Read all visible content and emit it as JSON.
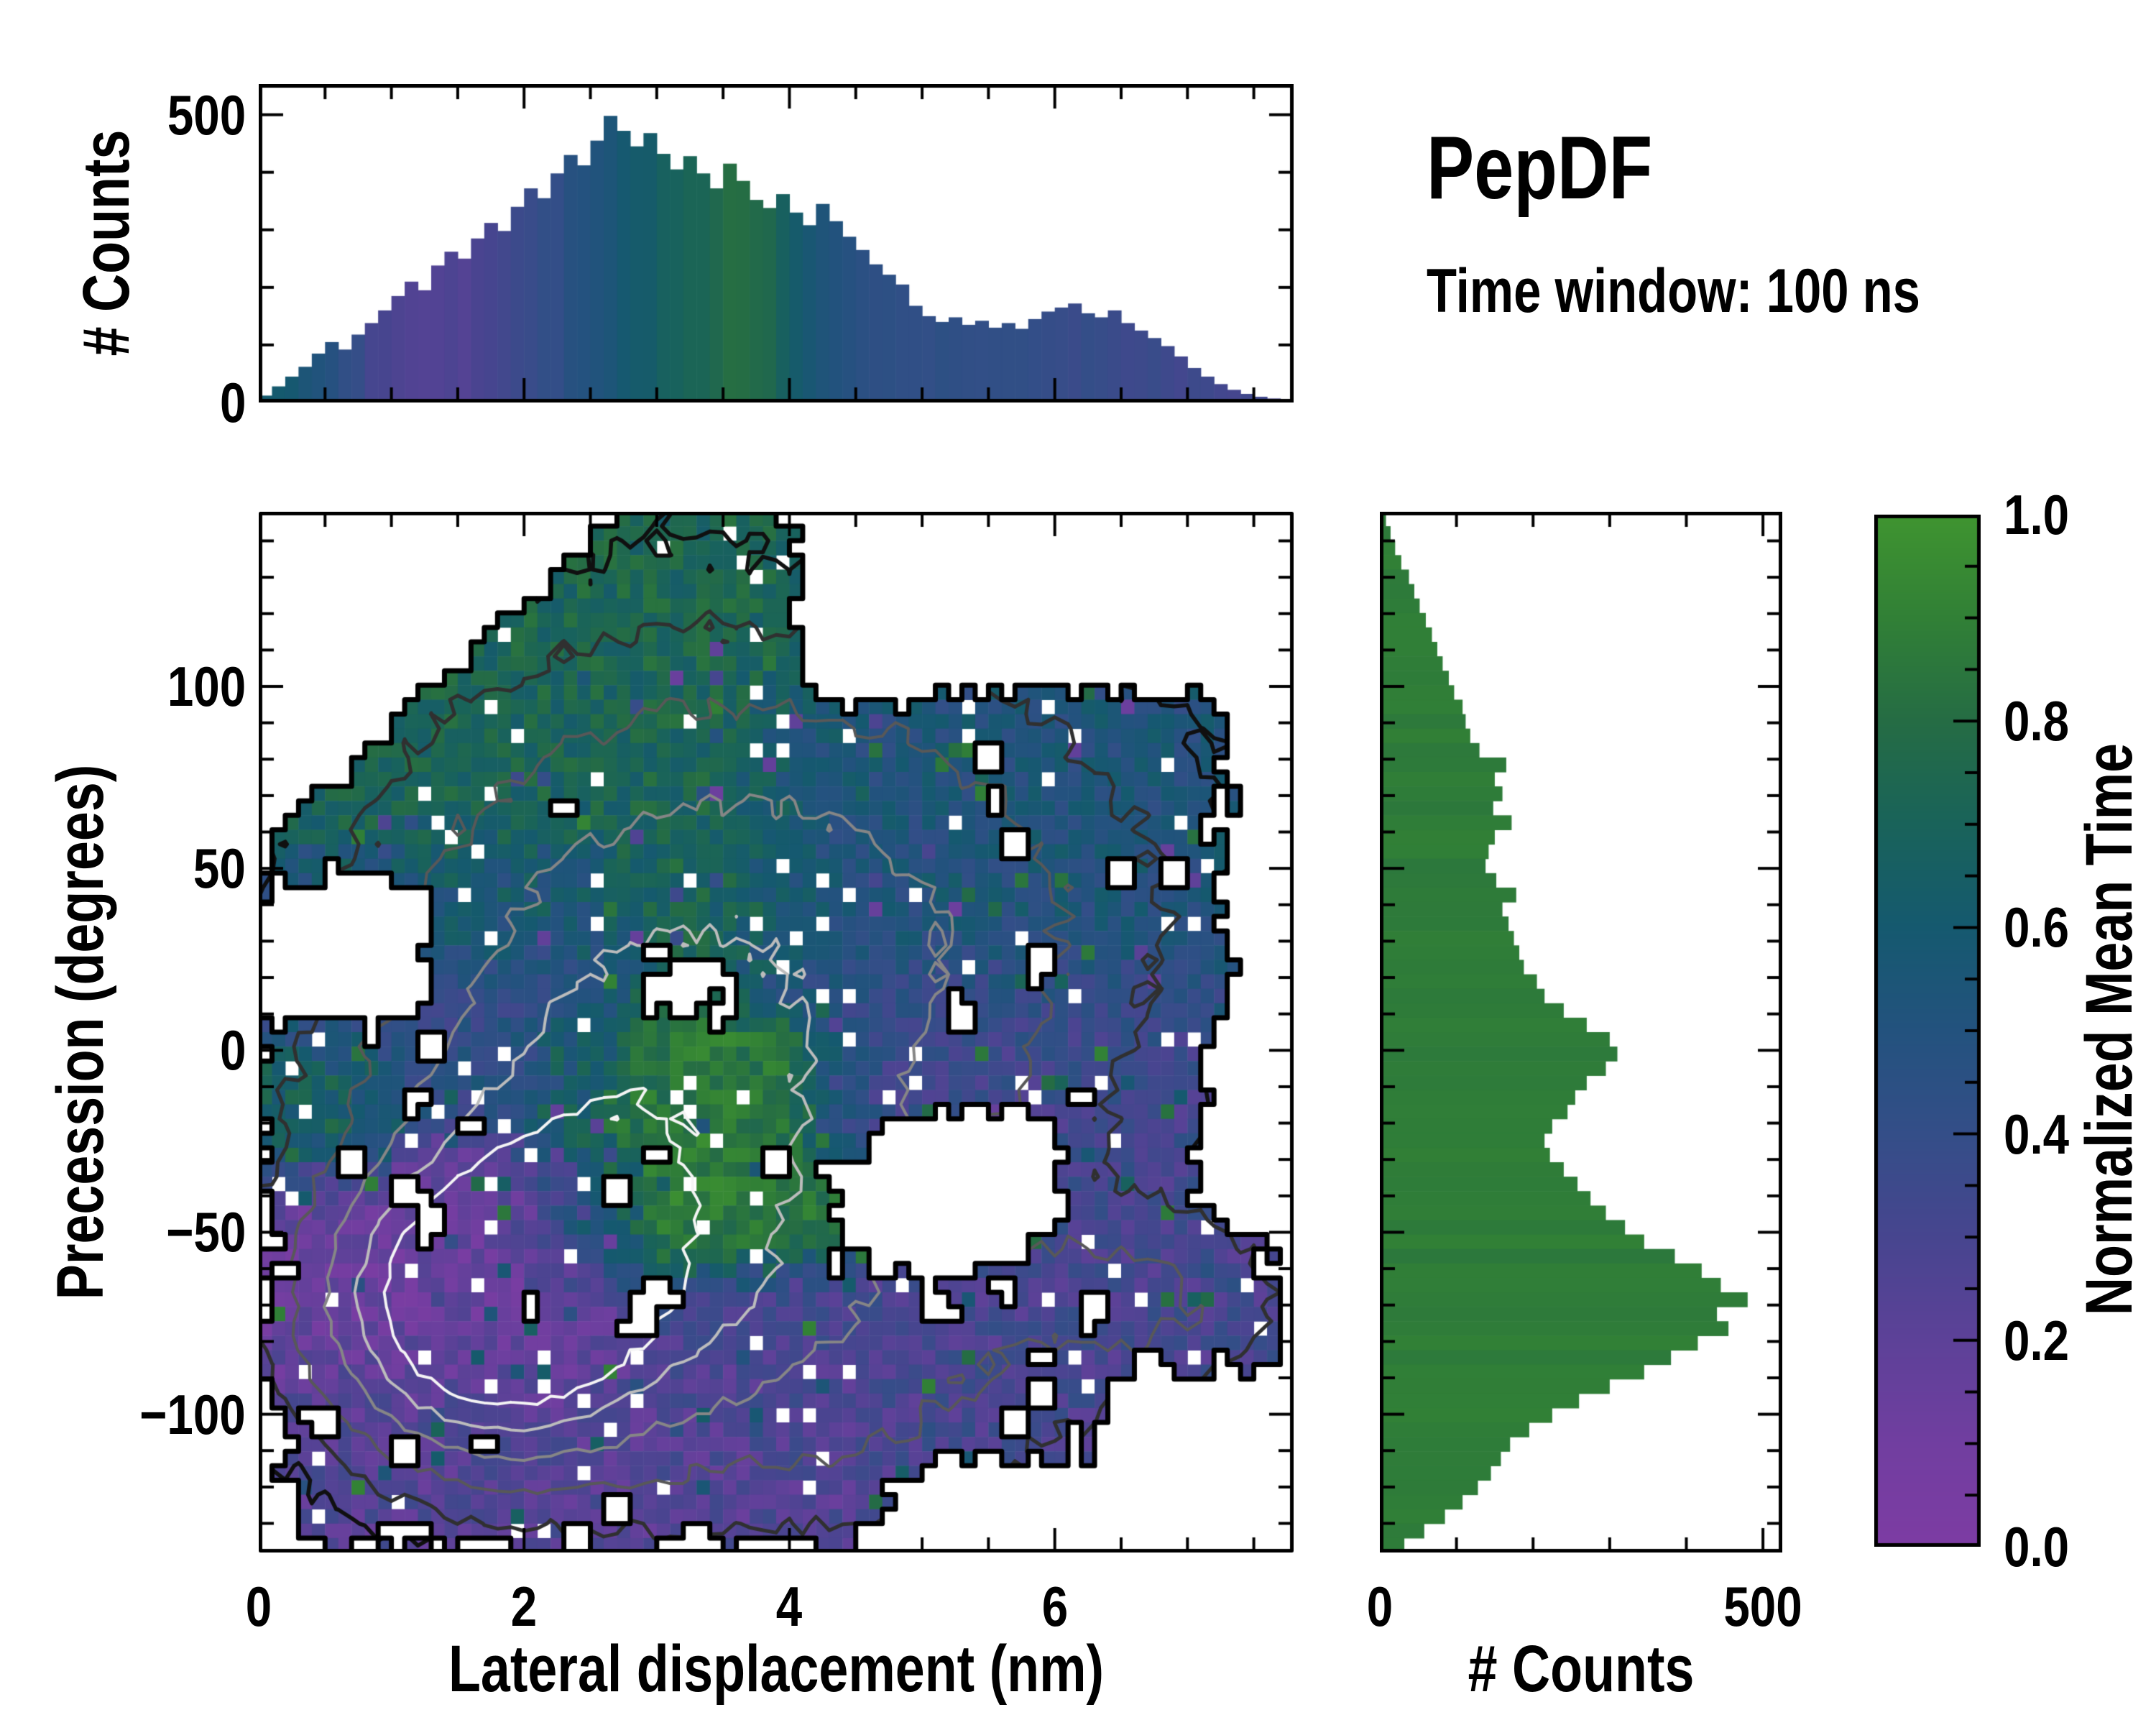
{
  "title": {
    "text": "PepDF",
    "subtitle": "Time window: 100 ns"
  },
  "labels": {
    "top_ylabel": "# Counts",
    "main_xlabel": "Lateral displacement (nm)",
    "main_ylabel": "Precession (degrees)",
    "right_xlabel": "# Counts",
    "colorbar_label": "Normalized Mean Time"
  },
  "style": {
    "background": "#ffffff",
    "text_color": "#000000",
    "colormap_stops": [
      "#7d3ca3",
      "#713ea0",
      "#5d4198",
      "#47458f",
      "#344e88",
      "#23527e",
      "#15596f",
      "#19635a",
      "#256c44",
      "#318036",
      "#3f9430"
    ],
    "contour_colors": [
      "#101010",
      "#303030",
      "#585858",
      "#868686",
      "#bcbcbc",
      "#f4f4f4"
    ],
    "boundary_color": "#000000"
  },
  "chart_data": [
    {
      "name": "top-histogram",
      "type": "bar",
      "orientation": "vertical",
      "xlabel": "Lateral displacement (nm)",
      "ylabel": "# Counts",
      "x_range": [
        0,
        7.8
      ],
      "y_range": [
        0,
        553
      ],
      "bin_width_nm": 0.1,
      "yticks": [
        {
          "v": 0,
          "label": "0"
        },
        {
          "v": 500,
          "label": "500"
        }
      ],
      "y_minor_step": 100,
      "counts": [
        12,
        28,
        45,
        62,
        85,
        105,
        92,
        118,
        138,
        160,
        185,
        210,
        195,
        238,
        262,
        250,
        285,
        312,
        298,
        340,
        372,
        355,
        398,
        430,
        412,
        455,
        498,
        472,
        445,
        468,
        432,
        405,
        428,
        398,
        372,
        415,
        385,
        352,
        338,
        362,
        330,
        308,
        345,
        315,
        288,
        265,
        240,
        222,
        205,
        168,
        150,
        140,
        148,
        135,
        142,
        130,
        138,
        128,
        145,
        158,
        165,
        172,
        155,
        148,
        160,
        138,
        125,
        112,
        98,
        80,
        60,
        45,
        32,
        22,
        15,
        10,
        7,
        5
      ],
      "color_by": "normalized mean time of column",
      "color_curve": [
        [
          0.0,
          0.6
        ],
        [
          0.3,
          0.58
        ],
        [
          0.6,
          0.45
        ],
        [
          0.9,
          0.3
        ],
        [
          1.3,
          0.24
        ],
        [
          1.7,
          0.28
        ],
        [
          2.1,
          0.38
        ],
        [
          2.5,
          0.5
        ],
        [
          2.9,
          0.62
        ],
        [
          3.3,
          0.72
        ],
        [
          3.6,
          0.82
        ],
        [
          3.9,
          0.72
        ],
        [
          4.2,
          0.55
        ],
        [
          4.6,
          0.45
        ],
        [
          5.2,
          0.42
        ],
        [
          6.0,
          0.4
        ],
        [
          6.8,
          0.35
        ],
        [
          7.8,
          0.3
        ]
      ]
    },
    {
      "name": "joint-map",
      "type": "heatmap",
      "xlabel": "Lateral displacement (nm)",
      "ylabel": "Precession (degrees)",
      "value_label": "Normalized Mean Time",
      "x_range": [
        0,
        7.8
      ],
      "y_range": [
        -138,
        148
      ],
      "bins": [
        78,
        72
      ],
      "xticks": [
        {
          "v": 0,
          "label": "0"
        },
        {
          "v": 2,
          "label": "2"
        },
        {
          "v": 4,
          "label": "4"
        },
        {
          "v": 6,
          "label": "6"
        }
      ],
      "x_minor_step": 0.5,
      "yticks": [
        {
          "v": 100,
          "label": "100"
        },
        {
          "v": 50,
          "label": "50"
        },
        {
          "v": 0,
          "label": "0"
        },
        {
          "v": -50,
          "label": "−50"
        },
        {
          "v": -100,
          "label": "−100"
        }
      ],
      "y_minor_step": 10,
      "regions": [
        {
          "name": "green-upper-left",
          "x": [
            0.25,
            4.0
          ],
          "y": [
            28,
            152
          ],
          "value": 0.73
        },
        {
          "name": "navy-upper-right",
          "x": [
            3.7,
            7.25
          ],
          "y": [
            12,
            97
          ],
          "value": 0.52
        },
        {
          "name": "teal-left-mid",
          "x": [
            0.15,
            2.7
          ],
          "y": [
            -18,
            55
          ],
          "value": 0.42
        },
        {
          "name": "bright-green-left-patch",
          "x": [
            0.1,
            0.95
          ],
          "y": [
            -32,
            2
          ],
          "value": 0.82
        },
        {
          "name": "green-center",
          "x": [
            2.2,
            4.35
          ],
          "y": [
            -58,
            8
          ],
          "value": 0.87
        },
        {
          "name": "indigo-right-mid",
          "x": [
            4.2,
            7.05
          ],
          "y": [
            -28,
            22
          ],
          "value": 0.34
        },
        {
          "name": "purple-lower-left",
          "x": [
            0.1,
            2.7
          ],
          "y": [
            -92,
            -28
          ],
          "value": 0.13
        },
        {
          "name": "indigo-bottom",
          "x": [
            0.2,
            4.7
          ],
          "y": [
            -134,
            -82
          ],
          "value": 0.24
        },
        {
          "name": "indigo-bottom-right",
          "x": [
            3.2,
            6.35
          ],
          "y": [
            -113,
            -62
          ],
          "value": 0.3
        },
        {
          "name": "indigo-right-blob",
          "x": [
            6.05,
            7.65
          ],
          "y": [
            -87,
            -50
          ],
          "value": 0.3
        },
        {
          "name": "indigo-right-connector",
          "x": [
            5.85,
            6.95
          ],
          "y": [
            -56,
            -16
          ],
          "value": 0.32
        }
      ],
      "holes": [
        {
          "name": "central-right-hole",
          "x": [
            4.55,
            6.05
          ],
          "y": [
            -53,
            -17
          ]
        },
        {
          "name": "left-bay",
          "x": [
            0.0,
            1.3
          ],
          "y": [
            8,
            48
          ]
        }
      ],
      "empty_cut_diagonal": {
        "comment": "white above-left of line",
        "from": [
          0.2,
          62
        ],
        "to": [
          2.75,
          148
        ]
      },
      "density_peaks": [
        {
          "x": 1.7,
          "y": -72,
          "amp": 1.0,
          "sx": 0.8,
          "sy": 26
        },
        {
          "x": 2.7,
          "y": -35,
          "amp": 0.55,
          "sx": 1.3,
          "sy": 42
        },
        {
          "x": 2.9,
          "y": 35,
          "amp": 0.4,
          "sx": 1.6,
          "sy": 55
        },
        {
          "x": 5.0,
          "y": 35,
          "amp": 0.3,
          "sx": 1.5,
          "sy": 48
        },
        {
          "x": 4.3,
          "y": -85,
          "amp": 0.3,
          "sx": 1.7,
          "sy": 38
        },
        {
          "x": 6.8,
          "y": -68,
          "amp": 0.22,
          "sx": 0.75,
          "sy": 16
        }
      ],
      "contour_levels": [
        0.08,
        0.17,
        0.3,
        0.48,
        0.68,
        0.88
      ]
    },
    {
      "name": "right-histogram",
      "type": "bar",
      "orientation": "horizontal",
      "xlabel": "# Counts",
      "x_range": [
        0,
        525
      ],
      "y_range": [
        -138,
        146
      ],
      "bin_width_deg": 4,
      "xticks": [
        {
          "v": 0,
          "label": "0"
        },
        {
          "v": 500,
          "label": "500"
        }
      ],
      "x_minor_step": 100,
      "counts_top_to_bottom": [
        8,
        14,
        20,
        28,
        38,
        45,
        52,
        60,
        68,
        75,
        82,
        90,
        97,
        108,
        112,
        118,
        130,
        165,
        150,
        160,
        148,
        172,
        150,
        142,
        138,
        152,
        178,
        160,
        168,
        175,
        182,
        188,
        205,
        215,
        240,
        270,
        300,
        310,
        295,
        270,
        255,
        245,
        225,
        215,
        222,
        240,
        258,
        275,
        295,
        320,
        345,
        385,
        420,
        445,
        480,
        440,
        455,
        415,
        380,
        345,
        300,
        260,
        225,
        195,
        170,
        158,
        145,
        128,
        108,
        85,
        58,
        32
      ],
      "color_by": "normalized mean time of row",
      "color_curve": [
        [
          146,
          0.88
        ],
        [
          120,
          0.82
        ],
        [
          100,
          0.78
        ],
        [
          80,
          0.72
        ],
        [
          60,
          0.66
        ],
        [
          40,
          0.62
        ],
        [
          20,
          0.58
        ],
        [
          0,
          0.55
        ],
        [
          -20,
          0.52
        ],
        [
          -40,
          0.49
        ],
        [
          -60,
          0.47
        ],
        [
          -80,
          0.45
        ],
        [
          -90,
          0.4
        ],
        [
          -100,
          0.33
        ],
        [
          -110,
          0.27
        ],
        [
          -120,
          0.2
        ],
        [
          -130,
          0.15
        ],
        [
          -138,
          0.12
        ]
      ]
    },
    {
      "name": "colorbar",
      "type": "colorbar",
      "label": "Normalized Mean Time",
      "range": [
        0,
        1
      ],
      "ticks": [
        {
          "v": 1.0,
          "label": "1.0"
        },
        {
          "v": 0.8,
          "label": "0.8"
        },
        {
          "v": 0.6,
          "label": "0.6"
        },
        {
          "v": 0.4,
          "label": "0.4"
        },
        {
          "v": 0.2,
          "label": "0.2"
        },
        {
          "v": 0.0,
          "label": "0.0"
        }
      ],
      "minor_step": 0.05
    }
  ]
}
